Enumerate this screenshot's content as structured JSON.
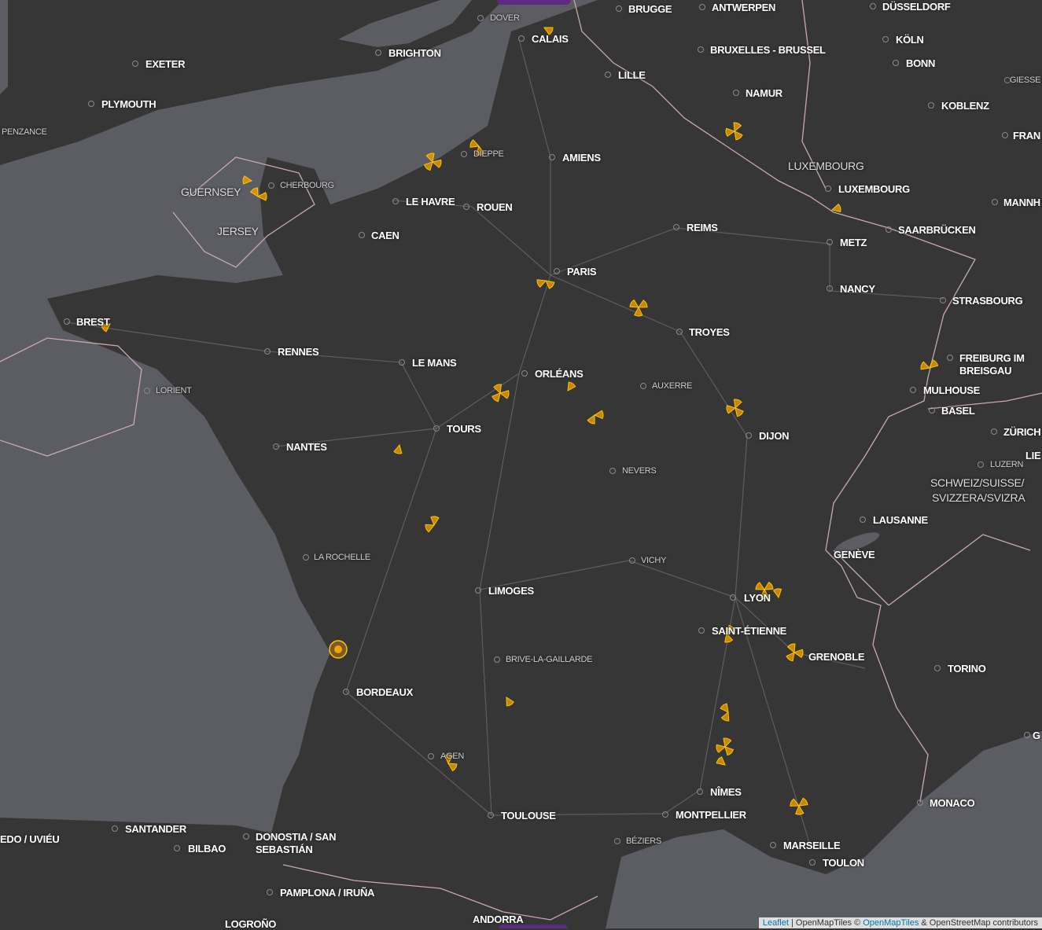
{
  "map": {
    "colors": {
      "land": "#363636",
      "sea": "#5c5c63",
      "border": "#c7a8b1",
      "road": "#6e6e6e",
      "marker": "#f5a300"
    },
    "labels": [
      {
        "text": "DOVER",
        "kind": "small"
      },
      {
        "text": "CALAIS",
        "kind": "city"
      },
      {
        "text": "BRUGGE",
        "kind": "city"
      },
      {
        "text": "ANTWERPEN",
        "kind": "city"
      },
      {
        "text": "DÜSSELDORF",
        "kind": "city"
      },
      {
        "text": "EXETER",
        "kind": "city"
      },
      {
        "text": "BRIGHTON",
        "kind": "city"
      },
      {
        "text": "KÖLN",
        "kind": "city"
      },
      {
        "text": "BRUXELLES - BRUSSEL",
        "kind": "city"
      },
      {
        "text": "BONN",
        "kind": "city"
      },
      {
        "text": "LILLE",
        "kind": "city"
      },
      {
        "text": "GIESSE",
        "kind": "small"
      },
      {
        "text": "PLYMOUTH",
        "kind": "city"
      },
      {
        "text": "NAMUR",
        "kind": "city"
      },
      {
        "text": "KOBLENZ",
        "kind": "city"
      },
      {
        "text": "PENZANCE",
        "kind": "small"
      },
      {
        "text": "DIEPPE",
        "kind": "small"
      },
      {
        "text": "AMIENS",
        "kind": "city"
      },
      {
        "text": "FRAN",
        "kind": "city"
      },
      {
        "text": "LUXEMBOURG",
        "kind": "region"
      },
      {
        "text": "CHERBOURG",
        "kind": "small"
      },
      {
        "text": "GUERNSEY",
        "kind": "region"
      },
      {
        "text": "LUXEMBOURG",
        "kind": "city"
      },
      {
        "text": "LE HAVRE",
        "kind": "city"
      },
      {
        "text": "ROUEN",
        "kind": "city"
      },
      {
        "text": "MANNH",
        "kind": "city"
      },
      {
        "text": "JERSEY",
        "kind": "region"
      },
      {
        "text": "REIMS",
        "kind": "city"
      },
      {
        "text": "SAARBRÜCKEN",
        "kind": "city"
      },
      {
        "text": "CAEN",
        "kind": "city"
      },
      {
        "text": "METZ",
        "kind": "city"
      },
      {
        "text": "PARIS",
        "kind": "city"
      },
      {
        "text": "NANCY",
        "kind": "city"
      },
      {
        "text": "STRASBOURG",
        "kind": "city"
      },
      {
        "text": "BREST",
        "kind": "city"
      },
      {
        "text": "TROYES",
        "kind": "city"
      },
      {
        "text": "RENNES",
        "kind": "city"
      },
      {
        "text": "FREIBURG IM",
        "kind": "city"
      },
      {
        "text": "BREISGAU",
        "kind": "city"
      },
      {
        "text": "LE MANS",
        "kind": "city"
      },
      {
        "text": "ORLÉANS",
        "kind": "city"
      },
      {
        "text": "AUXERRE",
        "kind": "small"
      },
      {
        "text": "LORIENT",
        "kind": "small"
      },
      {
        "text": "MULHOUSE",
        "kind": "city"
      },
      {
        "text": "BASEL",
        "kind": "city"
      },
      {
        "text": "TOURS",
        "kind": "city"
      },
      {
        "text": "DIJON",
        "kind": "city"
      },
      {
        "text": "ZÜRICH",
        "kind": "city"
      },
      {
        "text": "NANTES",
        "kind": "city"
      },
      {
        "text": "LUZERN",
        "kind": "small"
      },
      {
        "text": "LIE",
        "kind": "city"
      },
      {
        "text": "NEVERS",
        "kind": "small"
      },
      {
        "text": "SCHWEIZ/SUISSE/",
        "kind": "region"
      },
      {
        "text": "SVIZZERA/SVIZRA",
        "kind": "region"
      },
      {
        "text": "LAUSANNE",
        "kind": "city"
      },
      {
        "text": "GENÈVE",
        "kind": "city"
      },
      {
        "text": "LA ROCHELLE",
        "kind": "small"
      },
      {
        "text": "VICHY",
        "kind": "small"
      },
      {
        "text": "LIMOGES",
        "kind": "city"
      },
      {
        "text": "LYON",
        "kind": "city"
      },
      {
        "text": "SAINT-ÉTIENNE",
        "kind": "city"
      },
      {
        "text": "GRENOBLE",
        "kind": "city"
      },
      {
        "text": "BRIVE-LA-GAILLARDE",
        "kind": "small"
      },
      {
        "text": "TORINO",
        "kind": "city"
      },
      {
        "text": "BORDEAUX",
        "kind": "city"
      },
      {
        "text": "AGEN",
        "kind": "small"
      },
      {
        "text": "NÎMES",
        "kind": "city"
      },
      {
        "text": "MONACO",
        "kind": "city"
      },
      {
        "text": "TOULOUSE",
        "kind": "city"
      },
      {
        "text": "MONTPELLIER",
        "kind": "city"
      },
      {
        "text": "SANTANDER",
        "kind": "city"
      },
      {
        "text": "EDO / UVIÉU",
        "kind": "city"
      },
      {
        "text": "DONOSTIA / SAN",
        "kind": "city"
      },
      {
        "text": "SEBASTIÁN",
        "kind": "city"
      },
      {
        "text": "BILBAO",
        "kind": "city"
      },
      {
        "text": "BÉZIERS",
        "kind": "small"
      },
      {
        "text": "MARSEILLE",
        "kind": "city"
      },
      {
        "text": "TOULON",
        "kind": "city"
      },
      {
        "text": "PAMPLONA / IRUÑA",
        "kind": "city"
      },
      {
        "text": "ANDORRA",
        "kind": "city"
      },
      {
        "text": "LOGROÑO",
        "kind": "city"
      },
      {
        "text": "G",
        "kind": "city"
      }
    ],
    "marker_icon": "nuclear-plant-sector-icon",
    "marker_count": 29
  },
  "attribution": {
    "leaflet": "Leaflet",
    "sep": " | OpenMapTiles © ",
    "omt": "OpenMapTiles",
    "rest": " & OpenStreetMap contributors"
  }
}
